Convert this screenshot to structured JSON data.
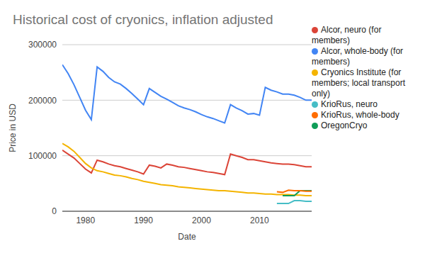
{
  "chart_data": {
    "type": "line",
    "title": "Historical cost of cryonics, inflation adjusted",
    "x_label": "Date",
    "y_label": "Price in USD",
    "x": [
      1976,
      1977,
      1978,
      1979,
      1980,
      1981,
      1982,
      1983,
      1984,
      1985,
      1986,
      1987,
      1988,
      1989,
      1990,
      1991,
      1992,
      1993,
      1994,
      1995,
      1996,
      1997,
      1998,
      1999,
      2000,
      2001,
      2002,
      2003,
      2004,
      2005,
      2006,
      2007,
      2008,
      2009,
      2010,
      2011,
      2012,
      2013,
      2014,
      2015,
      2016,
      2017,
      2018,
      2019
    ],
    "series": [
      {
        "name": "Alcor, whole-body (for members)",
        "color": "#4285f4",
        "values": [
          264000,
          248000,
          228000,
          205000,
          182000,
          165000,
          260000,
          252000,
          241000,
          233000,
          229000,
          221000,
          212000,
          202000,
          192000,
          221000,
          214000,
          207000,
          202000,
          196000,
          190000,
          186000,
          183000,
          179000,
          174000,
          170000,
          167000,
          163000,
          159000,
          192000,
          186000,
          181000,
          175000,
          176000,
          173000,
          223000,
          218000,
          215000,
          211000,
          211000,
          209000,
          205000,
          200000,
          200000
        ]
      },
      {
        "name": "Alcor, neuro (for members)",
        "color": "#db4437",
        "values": [
          110000,
          103000,
          96000,
          86000,
          76000,
          69000,
          92000,
          89000,
          85000,
          82000,
          80000,
          77000,
          74000,
          71000,
          67000,
          83000,
          81000,
          78000,
          85000,
          83000,
          80000,
          79000,
          77000,
          75000,
          73000,
          71000,
          70000,
          68000,
          66000,
          103000,
          100000,
          97000,
          93000,
          93000,
          91000,
          89000,
          87000,
          86000,
          85000,
          85000,
          84000,
          82000,
          80000,
          80000
        ]
      },
      {
        "name": "Cryonics Institute (for members; local transport only)",
        "color": "#f4b400",
        "values": [
          122000,
          116000,
          108000,
          97000,
          86000,
          78000,
          73000,
          71000,
          68000,
          65000,
          64000,
          62000,
          59000,
          57000,
          54000,
          52000,
          50000,
          48000,
          47000,
          46000,
          44000,
          43000,
          42000,
          41000,
          40000,
          39000,
          38000,
          37000,
          37000,
          36000,
          35000,
          34000,
          33000,
          33000,
          32000,
          31000,
          31000,
          30000,
          30000,
          30000,
          29000,
          29000,
          28000,
          28000
        ]
      },
      {
        "name": "OregonCryo",
        "color": "#0f9d58",
        "values": [
          null,
          null,
          null,
          null,
          null,
          null,
          null,
          null,
          null,
          null,
          null,
          null,
          null,
          null,
          null,
          null,
          null,
          null,
          null,
          null,
          null,
          null,
          null,
          null,
          null,
          null,
          null,
          null,
          null,
          null,
          null,
          null,
          null,
          null,
          null,
          null,
          null,
          null,
          28000,
          28000,
          28000,
          37000,
          37000,
          37000
        ]
      },
      {
        "name": "KrioRus, whole-body",
        "color": "#ff6d00",
        "values": [
          null,
          null,
          null,
          null,
          null,
          null,
          null,
          null,
          null,
          null,
          null,
          null,
          null,
          null,
          null,
          null,
          null,
          null,
          null,
          null,
          null,
          null,
          null,
          null,
          null,
          null,
          null,
          null,
          null,
          null,
          null,
          null,
          null,
          null,
          null,
          null,
          null,
          35000,
          34000,
          38000,
          37000,
          37000,
          36000,
          36000
        ]
      },
      {
        "name": "KrioRus, neuro",
        "color": "#46bdc6",
        "values": [
          null,
          null,
          null,
          null,
          null,
          null,
          null,
          null,
          null,
          null,
          null,
          null,
          null,
          null,
          null,
          null,
          null,
          null,
          null,
          null,
          null,
          null,
          null,
          null,
          null,
          null,
          null,
          null,
          null,
          null,
          null,
          null,
          null,
          null,
          null,
          null,
          null,
          14000,
          14000,
          14000,
          19000,
          19000,
          18000,
          18000
        ]
      }
    ],
    "xlim": [
      1976,
      2019
    ],
    "xticks": [
      1980,
      1990,
      2000,
      2010
    ],
    "ylim": [
      0,
      300000
    ],
    "yticks": [
      0,
      100000,
      200000,
      300000
    ],
    "grid": true,
    "legend": "right"
  }
}
